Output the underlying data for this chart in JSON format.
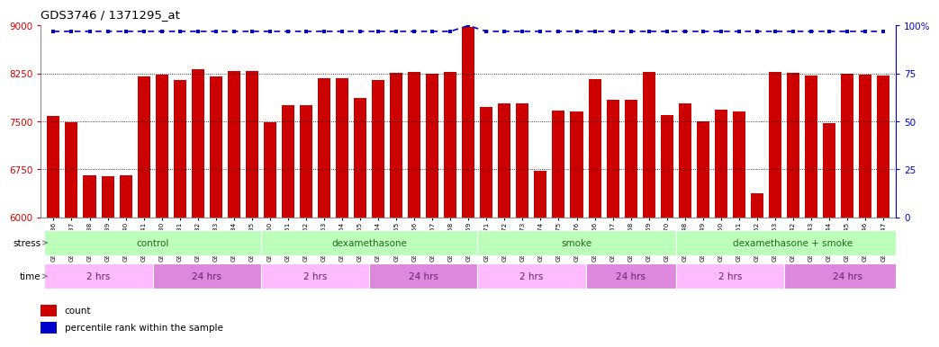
{
  "title": "GDS3746 / 1371295_at",
  "samples": [
    "GSM389536",
    "GSM389537",
    "GSM389538",
    "GSM389539",
    "GSM389540",
    "GSM389541",
    "GSM389530",
    "GSM389531",
    "GSM389532",
    "GSM389533",
    "GSM389534",
    "GSM389535",
    "GSM389560",
    "GSM389561",
    "GSM389562",
    "GSM389563",
    "GSM389564",
    "GSM389565",
    "GSM389554",
    "GSM389555",
    "GSM389556",
    "GSM389557",
    "GSM389558",
    "GSM389559",
    "GSM389571",
    "GSM389572",
    "GSM389573",
    "GSM389574",
    "GSM389575",
    "GSM389576",
    "GSM389566",
    "GSM389567",
    "GSM389568",
    "GSM389569",
    "GSM389570",
    "GSM389548",
    "GSM389549",
    "GSM389550",
    "GSM389551",
    "GSM389552",
    "GSM389553",
    "GSM389542",
    "GSM389543",
    "GSM389544",
    "GSM389545",
    "GSM389546",
    "GSM389547"
  ],
  "counts": [
    7580,
    7480,
    6650,
    6640,
    6650,
    8200,
    8230,
    8150,
    8320,
    8210,
    8290,
    8290,
    7480,
    7760,
    7760,
    8180,
    8180,
    7870,
    8150,
    8260,
    8280,
    8240,
    8280,
    8980,
    7720,
    7780,
    7780,
    6720,
    7670,
    7660,
    8160,
    7840,
    7840,
    8270,
    7600,
    7780,
    7500,
    7680,
    7660,
    6380,
    8270,
    8260,
    8220,
    7470,
    8240,
    8230,
    8220
  ],
  "percentiles": [
    97,
    97,
    97,
    97,
    97,
    97,
    97,
    97,
    97,
    97,
    97,
    97,
    97,
    97,
    97,
    97,
    97,
    97,
    97,
    97,
    97,
    97,
    97,
    100,
    97,
    97,
    97,
    97,
    97,
    97,
    97,
    97,
    97,
    97,
    97,
    97,
    97,
    97,
    97,
    97,
    97,
    97,
    97,
    97,
    97,
    97,
    97
  ],
  "ylim": [
    6000,
    9000
  ],
  "yticks": [
    6000,
    6750,
    7500,
    8250,
    9000
  ],
  "right_yticks": [
    0,
    25,
    50,
    75,
    100
  ],
  "bar_color": "#cc0000",
  "percentile_color": "#0000cc",
  "background_color": "#ffffff",
  "grid_color": "#000000",
  "stress_groups": [
    {
      "label": "control",
      "start": 0,
      "end": 11,
      "color": "#bbffbb"
    },
    {
      "label": "dexamethasone",
      "start": 12,
      "end": 23,
      "color": "#bbffbb"
    },
    {
      "label": "smoke",
      "start": 24,
      "end": 34,
      "color": "#bbffbb"
    },
    {
      "label": "dexamethasone + smoke",
      "start": 35,
      "end": 47,
      "color": "#bbffbb"
    }
  ],
  "time_groups": [
    {
      "label": "2 hrs",
      "start": 0,
      "end": 5,
      "color": "#ffbbff"
    },
    {
      "label": "24 hrs",
      "start": 6,
      "end": 11,
      "color": "#dd88dd"
    },
    {
      "label": "2 hrs",
      "start": 12,
      "end": 17,
      "color": "#ffbbff"
    },
    {
      "label": "24 hrs",
      "start": 18,
      "end": 23,
      "color": "#dd88dd"
    },
    {
      "label": "2 hrs",
      "start": 24,
      "end": 29,
      "color": "#ffbbff"
    },
    {
      "label": "24 hrs",
      "start": 30,
      "end": 34,
      "color": "#dd88dd"
    },
    {
      "label": "2 hrs",
      "start": 35,
      "end": 40,
      "color": "#ffbbff"
    },
    {
      "label": "24 hrs",
      "start": 41,
      "end": 47,
      "color": "#dd88dd"
    }
  ],
  "legend": [
    {
      "label": "count",
      "color": "#cc0000"
    },
    {
      "label": "percentile rank within the sample",
      "color": "#0000cc"
    }
  ]
}
